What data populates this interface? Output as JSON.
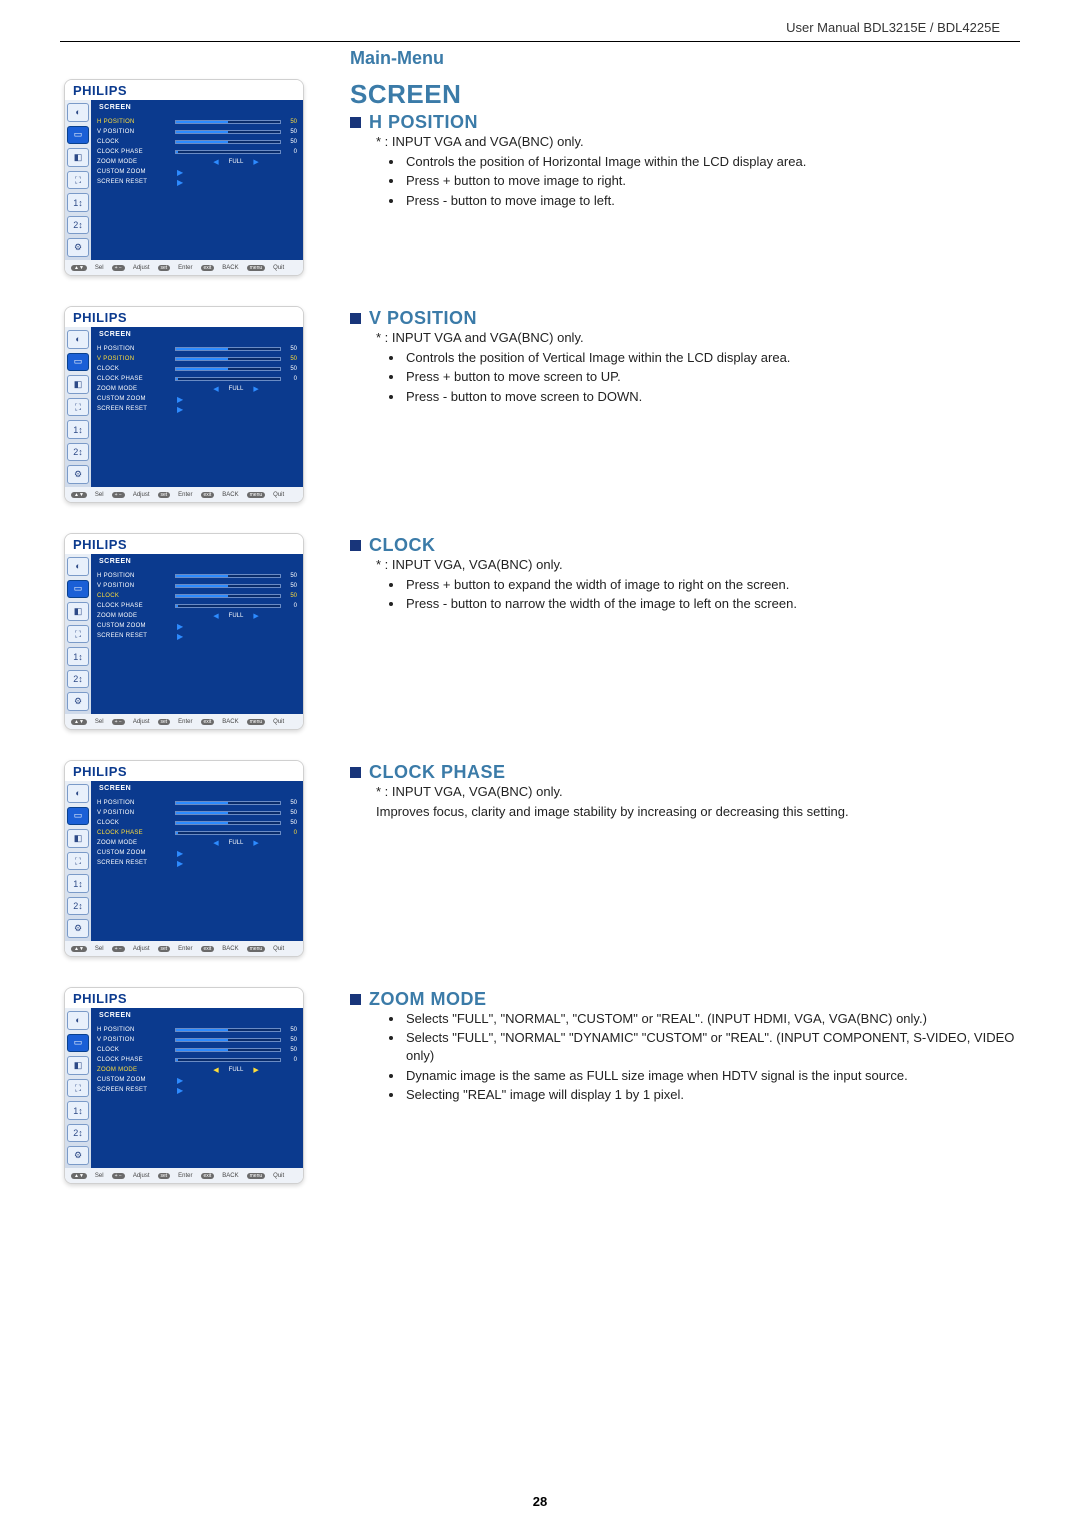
{
  "header": "User Manual BDL3215E / BDL4225E",
  "main_menu": "Main-Menu",
  "page_number": "28",
  "osd_common": {
    "brand": "PHILIPS",
    "menu_title": "SCREEN",
    "items": [
      "H POSITION",
      "V POSITION",
      "CLOCK",
      "CLOCK PHASE",
      "ZOOM MODE",
      "CUSTOM ZOOM",
      "SCREEN RESET"
    ],
    "values": [
      "50",
      "50",
      "50",
      "0"
    ],
    "zoom_value": "FULL",
    "footer": {
      "sel": "Sel",
      "adjust": "Adjust",
      "enter": "Enter",
      "back": "BACK",
      "quit": "Quit"
    },
    "colors": {
      "bg": "#0b3a8e",
      "highlight": "#ffde3a",
      "bar_fill": "#2d8bff"
    }
  },
  "sections": [
    {
      "big_title": "SCREEN",
      "sub": "H POSITION",
      "selected_index": 0,
      "asterisk": "* : INPUT VGA and VGA(BNC) only.",
      "bullets": [
        "Controls the position of Horizontal Image within the LCD display area.",
        "Press + button to move image to right.",
        "Press - button to move image to left."
      ]
    },
    {
      "sub": "V POSITION",
      "selected_index": 1,
      "asterisk": "* : INPUT VGA and VGA(BNC) only.",
      "bullets": [
        "Controls the position of Vertical Image within the LCD display area.",
        "Press + button to move screen to UP.",
        "Press - button to move screen to DOWN."
      ]
    },
    {
      "sub": "CLOCK",
      "selected_index": 2,
      "asterisk": "* : INPUT VGA, VGA(BNC) only.",
      "bullets": [
        "Press + button to expand the width of image to right on the screen.",
        "Press - button to narrow the width of the image to left on the screen."
      ]
    },
    {
      "sub": "CLOCK PHASE",
      "selected_index": 3,
      "asterisk": "* : INPUT VGA, VGA(BNC) only.",
      "bullets": [],
      "plain": "Improves focus, clarity and image stability by increasing or decreasing this setting."
    },
    {
      "sub": "ZOOM MODE",
      "selected_index": 4,
      "bullets": [
        "Selects \"FULL\", \"NORMAL\", \"CUSTOM\" or \"REAL\". (INPUT HDMI,  VGA, VGA(BNC) only.)",
        "Selects \"FULL\", \"NORMAL\" \"DYNAMIC\" \"CUSTOM\" or \"REAL\". (INPUT COMPONENT,  S-VIDEO, VIDEO only)",
        "Dynamic image is the same as FULL size image when HDTV signal is the input source.",
        "Selecting \"REAL\" image will display 1 by 1 pixel."
      ]
    }
  ]
}
